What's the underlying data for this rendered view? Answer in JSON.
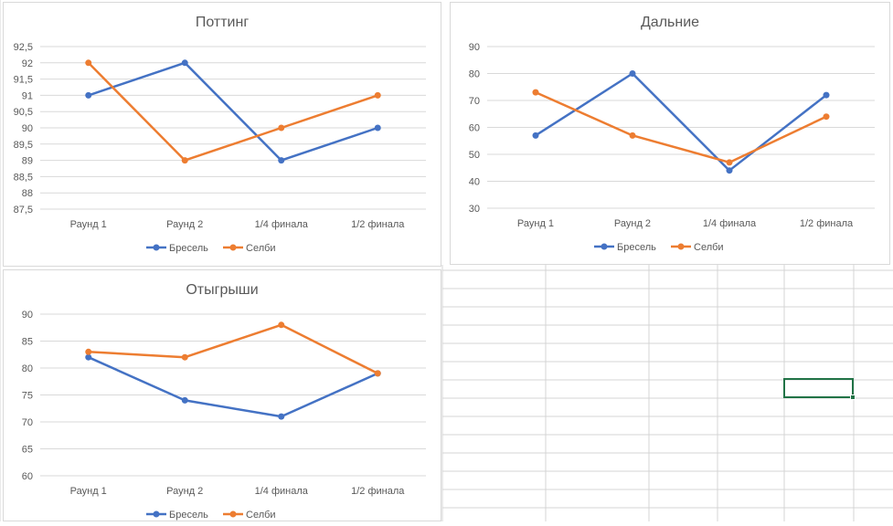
{
  "sheet": {
    "gridline_color": "#d4d4d4",
    "selection_color": "#217346"
  },
  "colors": {
    "series_blue": "#4472c4",
    "series_orange": "#ed7d31",
    "gridline": "#d9d9d9",
    "text": "#595959"
  },
  "chart_data": [
    {
      "type": "line",
      "title": "Поттинг",
      "categories": [
        "Раунд 1",
        "Раунд 2",
        "1/4 финала",
        "1/2 финала"
      ],
      "y_ticks": [
        "87,5",
        "88",
        "88,5",
        "89",
        "89,5",
        "90",
        "90,5",
        "91",
        "91,5",
        "92",
        "92,5"
      ],
      "ylim": [
        87.5,
        92.5
      ],
      "grid": true,
      "legend_position": "bottom",
      "series": [
        {
          "name": "Бресель",
          "color": "#4472c4",
          "values": [
            91,
            92,
            89,
            90
          ]
        },
        {
          "name": "Селби",
          "color": "#ed7d31",
          "values": [
            92,
            89,
            90,
            91
          ]
        }
      ]
    },
    {
      "type": "line",
      "title": "Дальние",
      "categories": [
        "Раунд 1",
        "Раунд 2",
        "1/4 финала",
        "1/2 финала"
      ],
      "y_ticks": [
        "30",
        "40",
        "50",
        "60",
        "70",
        "80",
        "90"
      ],
      "ylim": [
        30,
        90
      ],
      "grid": true,
      "legend_position": "bottom",
      "series": [
        {
          "name": "Бресель",
          "color": "#4472c4",
          "values": [
            57,
            80,
            44,
            72
          ]
        },
        {
          "name": "Селби",
          "color": "#ed7d31",
          "values": [
            73,
            57,
            47,
            64
          ]
        }
      ]
    },
    {
      "type": "line",
      "title": "Отыгрыши",
      "categories": [
        "Раунд 1",
        "Раунд 2",
        "1/4 финала",
        "1/2 финала"
      ],
      "y_ticks": [
        "60",
        "65",
        "70",
        "75",
        "80",
        "85",
        "90"
      ],
      "ylim": [
        60,
        90
      ],
      "grid": true,
      "legend_position": "bottom",
      "series": [
        {
          "name": "Бресель",
          "color": "#4472c4",
          "values": [
            82,
            74,
            71,
            79
          ]
        },
        {
          "name": "Селби",
          "color": "#ed7d31",
          "values": [
            83,
            82,
            88,
            79
          ]
        }
      ]
    }
  ]
}
